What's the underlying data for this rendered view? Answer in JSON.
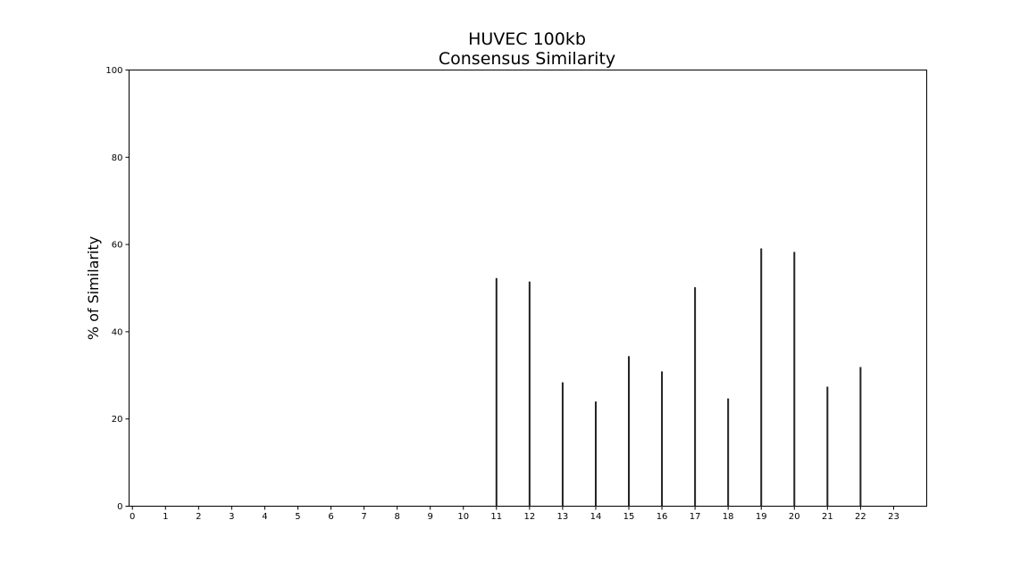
{
  "chart_data": {
    "type": "bar",
    "title": [
      "HUVEC 100kb",
      "Consensus Similarity"
    ],
    "xlabel": "",
    "ylabel": "% of Similarity",
    "x_ticks": [
      "0",
      "1",
      "2",
      "3",
      "4",
      "5",
      "6",
      "7",
      "8",
      "9",
      "10",
      "11",
      "12",
      "13",
      "14",
      "15",
      "16",
      "17",
      "18",
      "19",
      "20",
      "21",
      "22",
      "23"
    ],
    "y_ticks": [
      "0",
      "20",
      "40",
      "60",
      "80",
      "100"
    ],
    "xlim": [
      -0.1,
      24
    ],
    "ylim": [
      0,
      100
    ],
    "categories": [
      11,
      12,
      13,
      14,
      15,
      16,
      17,
      18,
      19,
      20,
      21,
      22
    ],
    "values": [
      52.3,
      51.5,
      28.4,
      24.0,
      34.4,
      30.9,
      50.2,
      24.7,
      59.1,
      58.3,
      27.4,
      31.9
    ],
    "bar_color": "#222222",
    "grid": false,
    "legend": false
  }
}
